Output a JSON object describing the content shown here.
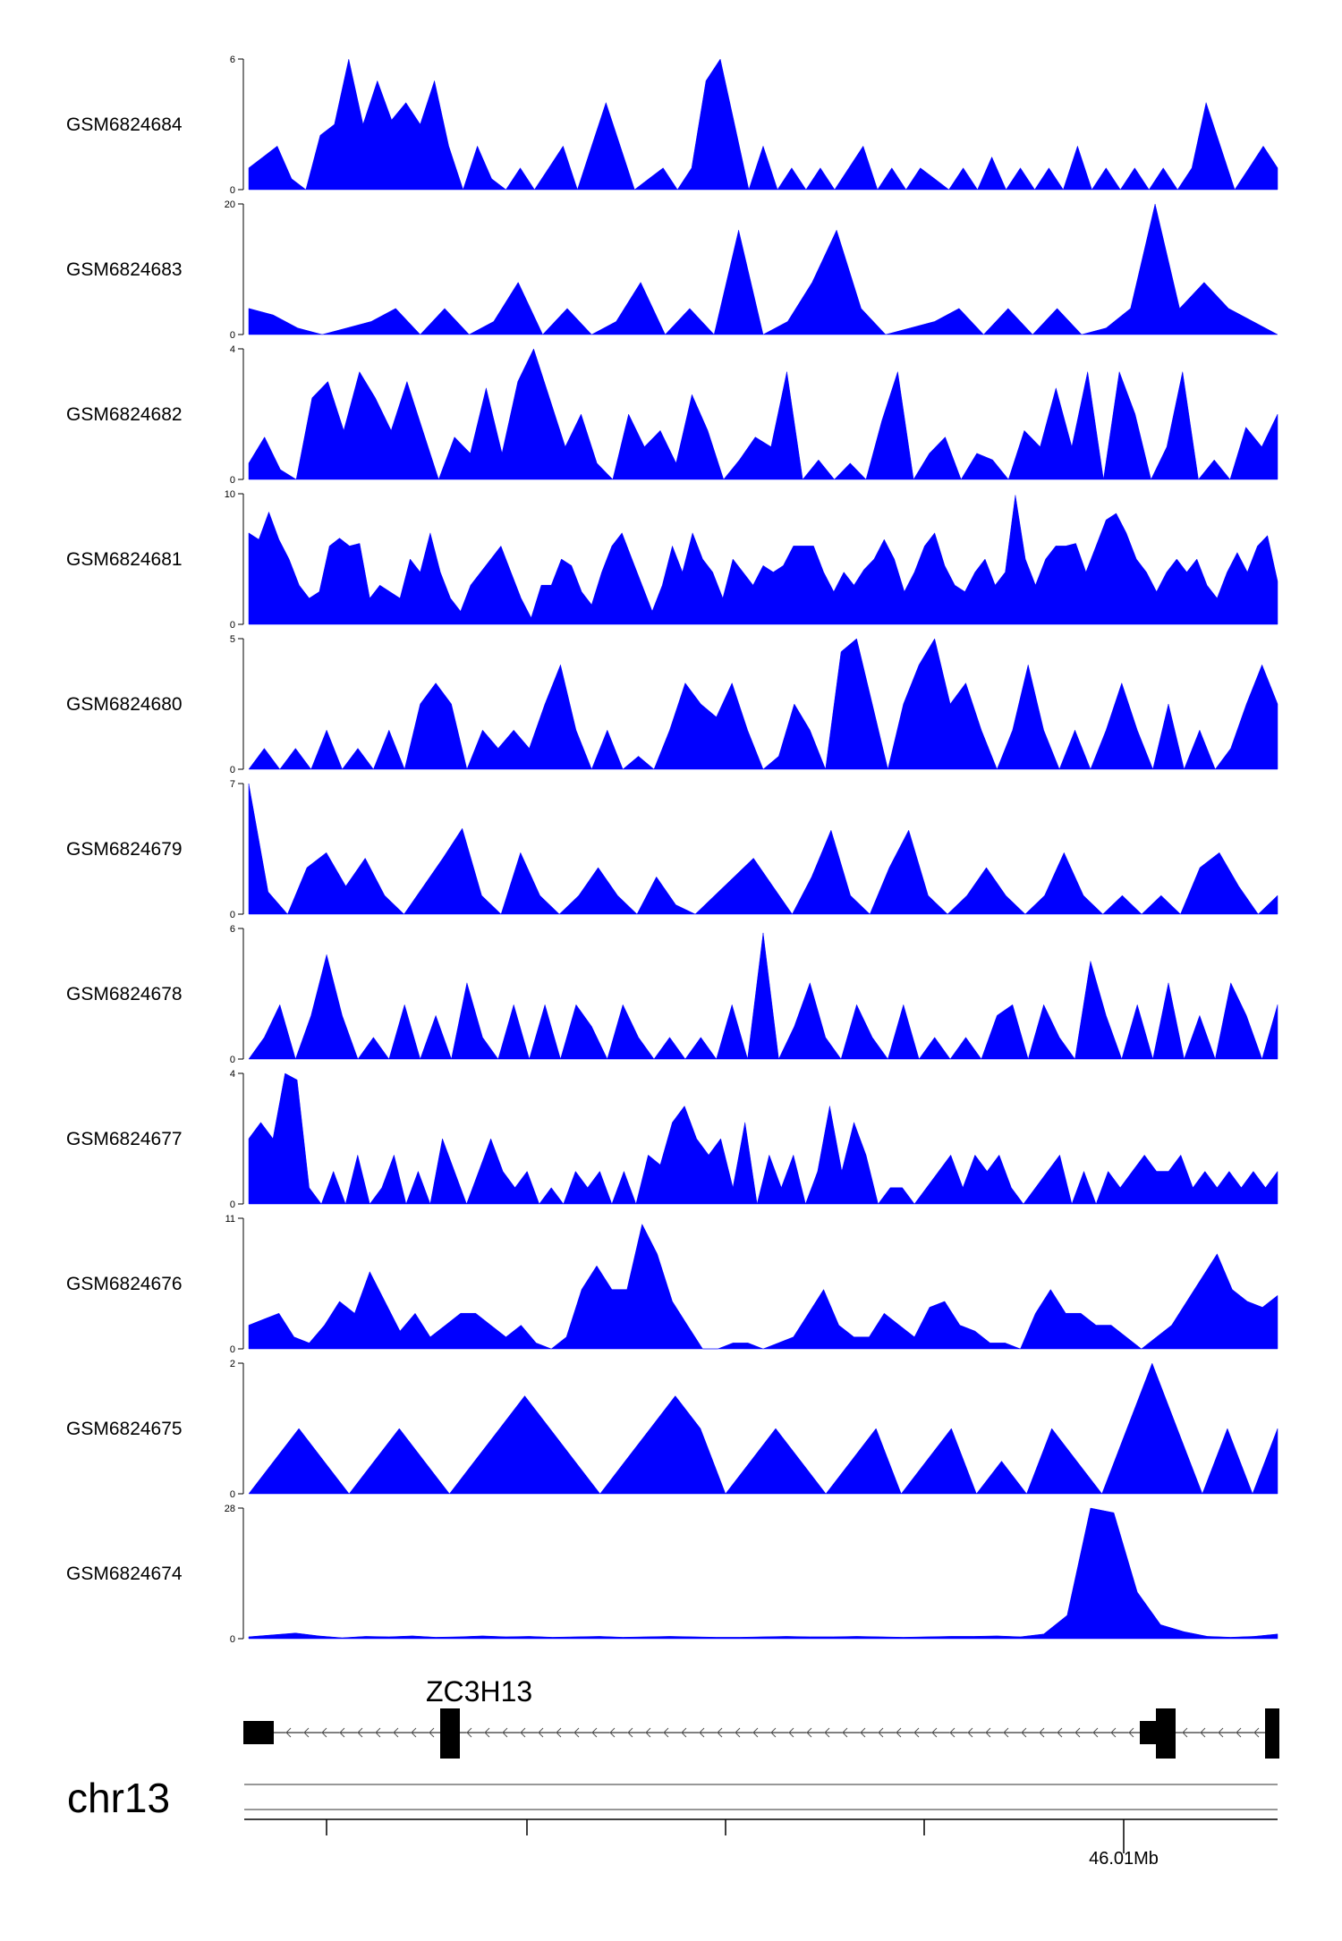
{
  "chart_data": {
    "type": "area",
    "color": "#0000ff",
    "tracks": [
      {
        "name": "GSM6824684",
        "ymax": 6,
        "ymin": 0,
        "values": [
          1,
          1.5,
          2,
          0.5,
          0,
          2.5,
          3,
          6,
          3,
          5,
          3.2,
          4,
          3,
          5,
          2,
          0,
          2,
          0.5,
          0,
          1,
          0,
          1,
          2,
          0,
          2,
          4,
          2,
          0,
          0.5,
          1,
          0,
          1,
          5,
          6,
          3,
          0,
          2,
          0,
          1,
          0,
          1,
          0,
          1,
          2,
          0,
          1,
          0,
          1,
          0.5,
          0,
          1,
          0,
          1.5,
          0,
          1,
          0,
          1,
          0,
          2,
          0,
          1,
          0,
          1,
          0,
          1,
          0,
          1,
          4,
          2,
          0,
          1,
          2,
          1
        ]
      },
      {
        "name": "GSM6824683",
        "ymax": 20,
        "ymin": 0,
        "values": [
          4,
          3,
          1,
          0,
          1,
          2,
          4,
          0,
          4,
          0,
          2,
          8,
          0,
          4,
          0,
          2,
          8,
          0,
          4,
          0,
          16,
          0,
          2,
          8,
          16,
          4,
          0,
          1,
          2,
          4,
          0,
          4,
          0,
          4,
          0,
          1,
          4,
          20,
          4,
          8,
          4,
          2,
          0
        ]
      },
      {
        "name": "GSM6824682",
        "ymax": 4,
        "ymin": 0,
        "values": [
          0.5,
          1.3,
          0.3,
          0,
          2.5,
          3,
          1.5,
          3.3,
          2.5,
          1.5,
          3,
          1.5,
          0,
          1.3,
          0.8,
          2.8,
          0.8,
          3,
          4,
          2.5,
          1,
          2,
          0.5,
          0,
          2,
          1,
          1.5,
          0.5,
          2.6,
          1.5,
          0,
          0.6,
          1.3,
          1,
          3.3,
          0,
          0.6,
          0,
          0.5,
          0,
          1.8,
          3.3,
          0,
          0.8,
          1.3,
          0,
          0.8,
          0.6,
          0,
          1.5,
          1,
          2.8,
          1,
          3.3,
          0,
          3.3,
          2,
          0,
          1,
          3.3,
          0,
          0.6,
          0,
          1.6,
          1,
          2
        ]
      },
      {
        "name": "GSM6824681",
        "ymax": 10,
        "ymin": 0,
        "values": [
          7,
          6.5,
          8.6,
          6.5,
          5,
          3,
          2,
          2.5,
          6,
          6.6,
          6,
          6.2,
          2,
          3,
          2.5,
          2,
          5,
          4,
          7,
          4,
          2,
          1,
          3,
          4,
          5,
          6,
          4,
          2,
          0.5,
          3,
          3,
          5,
          4.5,
          2.5,
          1.5,
          4,
          6,
          7,
          5,
          3,
          1,
          3,
          6,
          4,
          7,
          5,
          4,
          2,
          5,
          4,
          3,
          4.5,
          4,
          4.5,
          6,
          6,
          6,
          4,
          2.5,
          4,
          3,
          4.2,
          5,
          6.5,
          5,
          2.5,
          4,
          6,
          7,
          4.5,
          3,
          2.5,
          4,
          5,
          3,
          4,
          9.9,
          5,
          3,
          5,
          6,
          6,
          6.2,
          4,
          6,
          8,
          8.5,
          7,
          5,
          4,
          2.5,
          4,
          5,
          4,
          5,
          3,
          2,
          4,
          5.5,
          4,
          6,
          6.8,
          3.3
        ]
      },
      {
        "name": "GSM6824680",
        "ymax": 5,
        "ymin": 0,
        "values": [
          0,
          0.8,
          0,
          0.8,
          0,
          1.5,
          0,
          0.8,
          0,
          1.5,
          0,
          2.5,
          3.3,
          2.5,
          0,
          1.5,
          0.8,
          1.5,
          0.8,
          2.5,
          4,
          1.5,
          0,
          1.5,
          0,
          0.5,
          0,
          1.5,
          3.3,
          2.5,
          2,
          3.3,
          1.5,
          0,
          0.5,
          2.5,
          1.5,
          0,
          4.5,
          5,
          2.5,
          0,
          2.5,
          4,
          5,
          2.5,
          3.3,
          1.5,
          0,
          1.5,
          4,
          1.5,
          0,
          1.5,
          0,
          1.5,
          3.3,
          1.5,
          0,
          2.5,
          0,
          1.5,
          0,
          0.8,
          2.5,
          4,
          2.5
        ]
      },
      {
        "name": "GSM6824679",
        "ymax": 7,
        "ymin": 0,
        "values": [
          7,
          1.2,
          0,
          2.5,
          3.3,
          1.5,
          3,
          1,
          0,
          1.5,
          3,
          4.6,
          1,
          0,
          3.3,
          1,
          0,
          1,
          2.5,
          1,
          0,
          2,
          0.5,
          0,
          1,
          2,
          3,
          1.5,
          0,
          2,
          4.5,
          1,
          0,
          2.5,
          4.5,
          1,
          0,
          1,
          2.5,
          1,
          0,
          1,
          3.3,
          1,
          0,
          1,
          0,
          1,
          0,
          2.5,
          3.3,
          1.5,
          0,
          1
        ]
      },
      {
        "name": "GSM6824678",
        "ymax": 6,
        "ymin": 0,
        "values": [
          0,
          1,
          2.5,
          0,
          2,
          4.8,
          2,
          0,
          1,
          0,
          2.5,
          0,
          2,
          0,
          3.5,
          1,
          0,
          2.5,
          0,
          2.5,
          0,
          2.5,
          1.5,
          0,
          2.5,
          1,
          0,
          1,
          0,
          1,
          0,
          2.5,
          0,
          5.8,
          0,
          1.5,
          3.5,
          1,
          0,
          2.5,
          1,
          0,
          2.5,
          0,
          1,
          0,
          1,
          0,
          2,
          2.5,
          0,
          2.5,
          1,
          0,
          4.5,
          2,
          0,
          2.5,
          0,
          3.5,
          0,
          2,
          0,
          3.5,
          2,
          0,
          2.5
        ]
      },
      {
        "name": "GSM6824677",
        "ymax": 4,
        "ymin": 0,
        "values": [
          2,
          2.5,
          2,
          4,
          3.8,
          0.5,
          0,
          1,
          0,
          1.5,
          0,
          0.5,
          1.5,
          0,
          1,
          0,
          2,
          1,
          0,
          1,
          2,
          1,
          0.5,
          1,
          0,
          0.5,
          0,
          1,
          0.5,
          1,
          0,
          1,
          0,
          1.5,
          1.2,
          2.5,
          3,
          2,
          1.5,
          2,
          0.5,
          2.5,
          0,
          1.5,
          0.5,
          1.5,
          0,
          1,
          3,
          1,
          2.5,
          1.5,
          0,
          0.5,
          0.5,
          0,
          0.5,
          1,
          1.5,
          0.5,
          1.5,
          1,
          1.5,
          0.5,
          0,
          0.5,
          1,
          1.5,
          0,
          1,
          0,
          1,
          0.5,
          1,
          1.5,
          1,
          1,
          1.5,
          0.5,
          1,
          0.5,
          1,
          0.5,
          1,
          0.5,
          1
        ]
      },
      {
        "name": "GSM6824676",
        "ymax": 11,
        "ymin": 0,
        "values": [
          2,
          2.5,
          3,
          1,
          0.5,
          2,
          4,
          3,
          6.5,
          4,
          1.5,
          3,
          1,
          2,
          3,
          3,
          2,
          1,
          2,
          0.5,
          0,
          1,
          5,
          7,
          5,
          5,
          10.5,
          8,
          4,
          2,
          0,
          0,
          0.5,
          0.5,
          0,
          0.5,
          1,
          3,
          5,
          2,
          1,
          1,
          3,
          2,
          1,
          3.5,
          4,
          2,
          1.5,
          0.5,
          0.5,
          0,
          3,
          5,
          3,
          3,
          2,
          2,
          1,
          0,
          1,
          2,
          4,
          6,
          8,
          5,
          4,
          3.5,
          4.5
        ]
      },
      {
        "name": "GSM6824675",
        "ymax": 2,
        "ymin": 0,
        "values": [
          0,
          0.5,
          1,
          0.5,
          0,
          0.5,
          1,
          0.5,
          0,
          0.5,
          1,
          1.5,
          1,
          0.5,
          0,
          0.5,
          1,
          1.5,
          1,
          0,
          0.5,
          1,
          0.5,
          0,
          0.5,
          1,
          0,
          0.5,
          1,
          0,
          0.5,
          0,
          1,
          0.5,
          0,
          1,
          2,
          1,
          0,
          1,
          0,
          1
        ]
      },
      {
        "name": "GSM6824674",
        "ymax": 28,
        "ymin": 0,
        "values": [
          0.4,
          0.8,
          1.2,
          0.6,
          0.2,
          0.5,
          0.4,
          0.6,
          0.3,
          0.4,
          0.6,
          0.4,
          0.5,
          0.3,
          0.4,
          0.5,
          0.3,
          0.4,
          0.5,
          0.4,
          0.3,
          0.3,
          0.4,
          0.5,
          0.4,
          0.4,
          0.5,
          0.4,
          0.3,
          0.4,
          0.5,
          0.5,
          0.6,
          0.4,
          1,
          5,
          28,
          27,
          10,
          3,
          1.5,
          0.5,
          0.3,
          0.5,
          1
        ]
      }
    ],
    "gene": {
      "name": "ZC3H13"
    },
    "chromosome": "chr13",
    "axis_label": "46.01Mb"
  }
}
